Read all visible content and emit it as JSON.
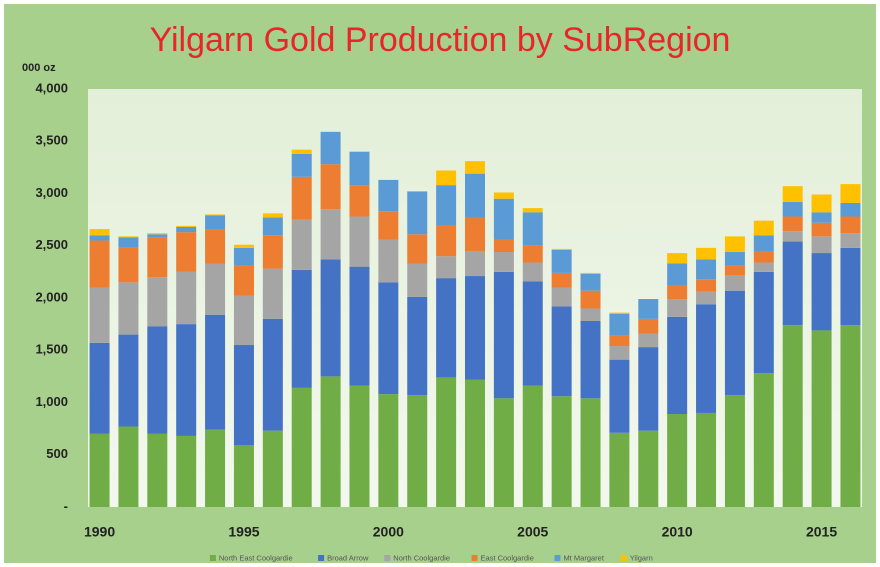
{
  "chart_data": {
    "type": "stacked_bar",
    "title": "Yilgarn Gold Production by SubRegion",
    "y_unit_label": "000 oz",
    "x": [
      1990,
      1991,
      1992,
      1993,
      1994,
      1995,
      1996,
      1997,
      1998,
      1999,
      2000,
      2001,
      2002,
      2003,
      2004,
      2005,
      2006,
      2007,
      2008,
      2009,
      2010,
      2011,
      2012,
      2013,
      2014,
      2015,
      2016
    ],
    "xlim": [
      1989.6,
      2016.4
    ],
    "xticks": [
      1990,
      1995,
      2000,
      2005,
      2010,
      2015
    ],
    "ylim": [
      0,
      4000
    ],
    "yticks": [
      {
        "value": 0,
        "label": "-"
      },
      500,
      {
        "value": 1000,
        "label": "1,000"
      },
      {
        "value": 1500,
        "label": "1,500"
      },
      {
        "value": 2000,
        "label": "2,000"
      },
      {
        "value": 2500,
        "label": "2,500"
      },
      {
        "value": 3000,
        "label": "3,000"
      },
      {
        "value": 3500,
        "label": "3,500"
      },
      {
        "value": 4000,
        "label": "4,000"
      }
    ],
    "grid": false,
    "legend": "bottom",
    "series": [
      {
        "name": "North East Coolgardie",
        "color": "#70ad47",
        "values": [
          700,
          770,
          700,
          680,
          740,
          590,
          730,
          1140,
          1250,
          1160,
          1080,
          1070,
          1240,
          1220,
          1040,
          1160,
          1060,
          1040,
          710,
          730,
          890,
          900,
          1070,
          1280,
          1740,
          1690,
          1740
        ]
      },
      {
        "name": "Broad Arrow",
        "color": "#4472c4",
        "values": [
          870,
          880,
          1030,
          1070,
          1100,
          960,
          1070,
          1130,
          1120,
          1140,
          1070,
          940,
          950,
          990,
          1210,
          1000,
          860,
          740,
          700,
          800,
          930,
          1040,
          1000,
          970,
          800,
          740,
          740
        ]
      },
      {
        "name": "North Coolgardie",
        "color": "#a5a5a5",
        "values": [
          530,
          500,
          470,
          500,
          490,
          470,
          480,
          480,
          480,
          480,
          410,
          320,
          210,
          240,
          190,
          180,
          180,
          120,
          130,
          130,
          170,
          120,
          150,
          90,
          100,
          160,
          140
        ]
      },
      {
        "name": "East Coolgardie",
        "color": "#ed7d31",
        "values": [
          450,
          330,
          380,
          380,
          330,
          290,
          320,
          410,
          430,
          300,
          270,
          280,
          290,
          320,
          120,
          160,
          140,
          170,
          100,
          140,
          130,
          120,
          90,
          110,
          140,
          130,
          160
        ]
      },
      {
        "name": "Mt Margaret",
        "color": "#5b9bd5",
        "values": [
          50,
          100,
          30,
          50,
          130,
          170,
          170,
          220,
          310,
          320,
          300,
          410,
          390,
          420,
          390,
          320,
          220,
          160,
          210,
          190,
          210,
          190,
          130,
          150,
          140,
          100,
          130
        ]
      },
      {
        "name": "Yilgarn",
        "color": "#ffc000",
        "values": [
          60,
          10,
          10,
          10,
          10,
          30,
          40,
          40,
          0,
          0,
          0,
          0,
          140,
          120,
          60,
          40,
          10,
          10,
          10,
          0,
          100,
          110,
          150,
          140,
          150,
          170,
          180
        ]
      }
    ]
  }
}
